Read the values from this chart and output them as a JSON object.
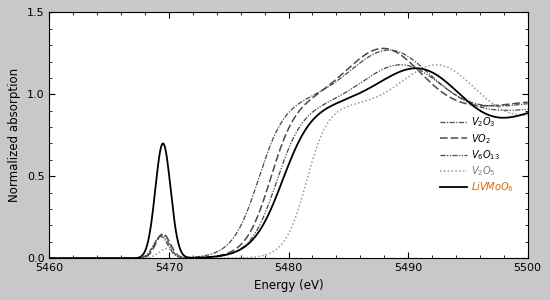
{
  "xlabel": "Energy (eV)",
  "ylabel": "Normalized absorption",
  "xlim": [
    5460,
    5500
  ],
  "ylim": [
    0.0,
    1.5
  ],
  "yticks": [
    0.0,
    0.5,
    1.0,
    1.5
  ],
  "xticks": [
    5460,
    5470,
    5480,
    5490,
    5500
  ],
  "background": "#ffffff",
  "fig_background": "#c8c8c8",
  "fig_width": 5.5,
  "fig_height": 3.0,
  "dpi": 100
}
